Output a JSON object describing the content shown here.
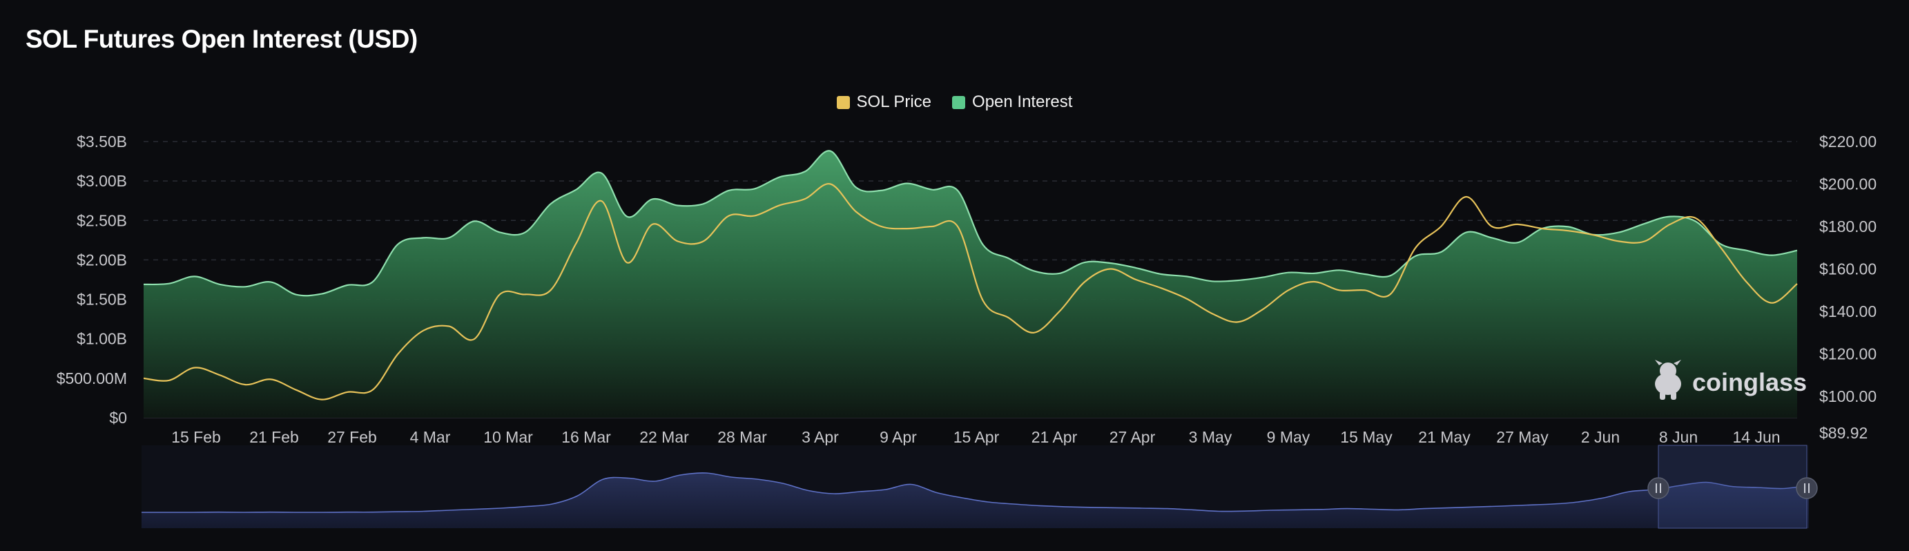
{
  "title": "SOL Futures Open Interest (USD)",
  "legend": [
    {
      "label": "SOL Price",
      "color": "#e8c35a"
    },
    {
      "label": "Open Interest",
      "color": "#5cc98c"
    }
  ],
  "watermark": "coinglass",
  "colors": {
    "background": "#0b0c0f",
    "oi_area_top": "#3f9a63",
    "oi_line": "#7fd9a0",
    "price_line": "#e8c35a",
    "navigator_line": "#5f72c8",
    "navigator_fill": "#1b2140"
  },
  "chart_data": {
    "type": "area",
    "title": "SOL Futures Open Interest (USD)",
    "xlabel": "",
    "ylabel": "",
    "x": [
      "11 Feb",
      "13 Feb",
      "15 Feb",
      "17 Feb",
      "19 Feb",
      "21 Feb",
      "23 Feb",
      "25 Feb",
      "27 Feb",
      "29 Feb",
      "2 Mar",
      "4 Mar",
      "6 Mar",
      "8 Mar",
      "10 Mar",
      "12 Mar",
      "14 Mar",
      "16 Mar",
      "18 Mar",
      "19 Mar",
      "20 Mar",
      "22 Mar",
      "24 Mar",
      "26 Mar",
      "28 Mar",
      "30 Mar",
      "1 Apr",
      "2 Apr",
      "4 Apr",
      "6 Apr",
      "9 Apr",
      "11 Apr",
      "13 Apr",
      "14 Apr",
      "15 Apr",
      "17 Apr",
      "19 Apr",
      "21 Apr",
      "23 Apr",
      "25 Apr",
      "27 Apr",
      "29 Apr",
      "1 May",
      "3 May",
      "5 May",
      "7 May",
      "9 May",
      "11 May",
      "13 May",
      "15 May",
      "17 May",
      "19 May",
      "21 May",
      "23 May",
      "25 May",
      "27 May",
      "29 May",
      "31 May",
      "2 Jun",
      "4 Jun",
      "6 Jun",
      "8 Jun",
      "10 Jun",
      "12 Jun",
      "14 Jun",
      "16 Jun"
    ],
    "x_ticks": [
      "15 Feb",
      "21 Feb",
      "27 Feb",
      "4 Mar",
      "10 Mar",
      "16 Mar",
      "22 Mar",
      "28 Mar",
      "3 Apr",
      "9 Apr",
      "15 Apr",
      "21 Apr",
      "27 Apr",
      "3 May",
      "9 May",
      "15 May",
      "21 May",
      "27 May",
      "2 Jun",
      "8 Jun",
      "14 Jun"
    ],
    "y_left_ticks": [
      "$0",
      "$500.00M",
      "$1.00B",
      "$1.50B",
      "$2.00B",
      "$2.50B",
      "$3.00B",
      "$3.50B"
    ],
    "y_left_range": [
      0,
      3.5
    ],
    "y_right_ticks": [
      "$89.92",
      "$100.00",
      "$120.00",
      "$140.00",
      "$160.00",
      "$180.00",
      "$200.00",
      "$220.00"
    ],
    "y_right_range": [
      89.92,
      220
    ],
    "series": [
      {
        "name": "Open Interest",
        "unit": "USD billions",
        "axis": "left",
        "values": [
          1.69,
          1.7,
          1.79,
          1.69,
          1.66,
          1.72,
          1.56,
          1.57,
          1.68,
          1.72,
          2.2,
          2.28,
          2.28,
          2.49,
          2.35,
          2.35,
          2.71,
          2.89,
          3.1,
          2.55,
          2.77,
          2.69,
          2.71,
          2.88,
          2.9,
          3.05,
          3.12,
          3.38,
          2.92,
          2.88,
          2.97,
          2.89,
          2.88,
          2.19,
          2.02,
          1.86,
          1.83,
          1.97,
          1.96,
          1.9,
          1.82,
          1.79,
          1.73,
          1.74,
          1.78,
          1.84,
          1.83,
          1.87,
          1.82,
          1.8,
          2.05,
          2.1,
          2.35,
          2.28,
          2.22,
          2.4,
          2.42,
          2.32,
          2.35,
          2.46,
          2.55,
          2.49,
          2.2,
          2.12,
          2.06,
          2.12
        ]
      },
      {
        "name": "SOL Price",
        "unit": "USD",
        "axis": "right",
        "values": [
          108.5,
          107.5,
          113.5,
          110,
          105.5,
          108,
          103,
          98.5,
          102,
          103,
          120,
          131,
          133,
          127,
          148,
          148,
          150,
          172,
          192,
          163,
          181,
          173,
          173,
          185,
          185,
          190,
          193,
          200,
          187,
          180,
          179,
          180,
          180,
          145,
          137,
          130,
          140,
          154,
          160,
          155,
          151,
          146,
          139,
          135,
          141,
          150,
          154,
          150,
          150,
          148,
          170,
          180,
          194,
          180,
          181,
          179,
          178,
          176,
          173,
          173,
          181,
          184,
          170,
          154,
          144,
          153
        ]
      }
    ],
    "navigator": {
      "values": [
        0.9,
        0.9,
        0.9,
        0.91,
        0.9,
        0.91,
        0.9,
        0.9,
        0.91,
        0.91,
        0.93,
        0.95,
        1.0,
        1.05,
        1.1,
        1.18,
        1.3,
        1.7,
        2.5,
        2.55,
        2.4,
        2.7,
        2.8,
        2.6,
        2.5,
        2.3,
        1.95,
        1.8,
        1.9,
        2.0,
        2.25,
        1.85,
        1.6,
        1.4,
        1.3,
        1.22,
        1.17,
        1.14,
        1.12,
        1.1,
        1.08,
        1.02,
        0.95,
        0.96,
        1.0,
        1.02,
        1.04,
        1.08,
        1.05,
        1.02,
        1.08,
        1.12,
        1.16,
        1.2,
        1.25,
        1.3,
        1.4,
        1.6,
        1.9,
        2.0,
        2.2,
        2.35,
        2.15,
        2.1,
        2.05,
        2.2
      ],
      "selected_range": [
        "7 Jun",
        "16 Jun"
      ]
    }
  }
}
